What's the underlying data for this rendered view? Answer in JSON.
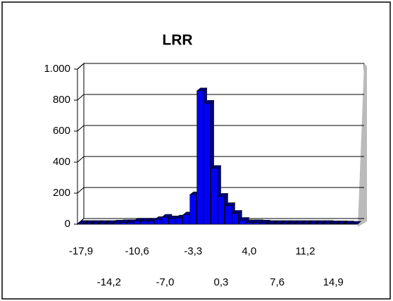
{
  "chart_data": {
    "type": "bar",
    "title": "LRR",
    "categories": [
      "-17,9",
      null,
      null,
      null,
      "-14,2",
      null,
      null,
      null,
      "-10,6",
      null,
      null,
      null,
      "-7,0",
      null,
      null,
      null,
      "-3,3",
      null,
      null,
      null,
      "0,3",
      null,
      null,
      null,
      "4,0",
      null,
      null,
      null,
      "7,6",
      null,
      null,
      null,
      "11,2",
      null,
      null,
      null,
      "14,9",
      null,
      null,
      null
    ],
    "values": [
      5,
      5,
      5,
      5,
      5,
      8,
      10,
      10,
      20,
      20,
      20,
      30,
      45,
      35,
      40,
      60,
      190,
      860,
      780,
      360,
      180,
      120,
      70,
      25,
      10,
      10,
      8,
      5,
      5,
      5,
      5,
      5,
      5,
      5,
      5,
      5,
      3,
      3,
      2,
      0
    ],
    "color": "#0000ff",
    "ylim": [
      0,
      1000
    ],
    "yticks": [
      0,
      200,
      400,
      600,
      800,
      {
        "value": 1000,
        "label": "1.000"
      }
    ],
    "grid": true
  }
}
